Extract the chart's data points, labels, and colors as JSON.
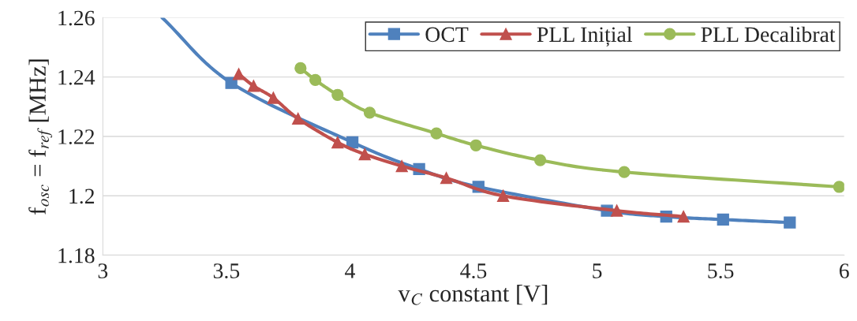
{
  "chart_data": {
    "type": "line",
    "xlabel": "v$_{C}$ constant [V]",
    "ylabel": "f$_{osc}$ = f$_{ref}$ [MHz]",
    "xlim": [
      3,
      6
    ],
    "xticks": [
      3,
      3.5,
      4,
      4.5,
      5,
      5.5,
      6
    ],
    "ylim": [
      1.18,
      1.26
    ],
    "yticks": [
      1.18,
      1.2,
      1.22,
      1.24,
      1.26
    ],
    "grid": "y",
    "legend": "top right",
    "line_style": "solid",
    "series": [
      {
        "name": "OCT",
        "color": "#4f81bd",
        "marker": "square",
        "x": [
          3.24,
          3.52,
          4.01,
          4.28,
          4.52,
          5.04,
          5.28,
          5.51,
          5.78
        ],
        "values": [
          1.26,
          1.238,
          1.218,
          1.209,
          1.203,
          1.195,
          1.193,
          1.192,
          1.191
        ]
      },
      {
        "name": "PLL Inițial",
        "color": "#c0504d",
        "marker": "triangle",
        "x": [
          3.55,
          3.61,
          3.69,
          3.79,
          3.95,
          4.06,
          4.21,
          4.39,
          4.62,
          5.08,
          5.35
        ],
        "values": [
          1.241,
          1.237,
          1.233,
          1.226,
          1.218,
          1.214,
          1.21,
          1.206,
          1.2,
          1.195,
          1.193
        ]
      },
      {
        "name": "PLL Decalibrat",
        "color": "#9bbb59",
        "marker": "circle",
        "x": [
          3.8,
          3.86,
          3.95,
          4.08,
          4.35,
          4.51,
          4.77,
          5.11,
          5.98
        ],
        "values": [
          1.243,
          1.239,
          1.234,
          1.228,
          1.221,
          1.217,
          1.212,
          1.208,
          1.203
        ]
      }
    ]
  }
}
